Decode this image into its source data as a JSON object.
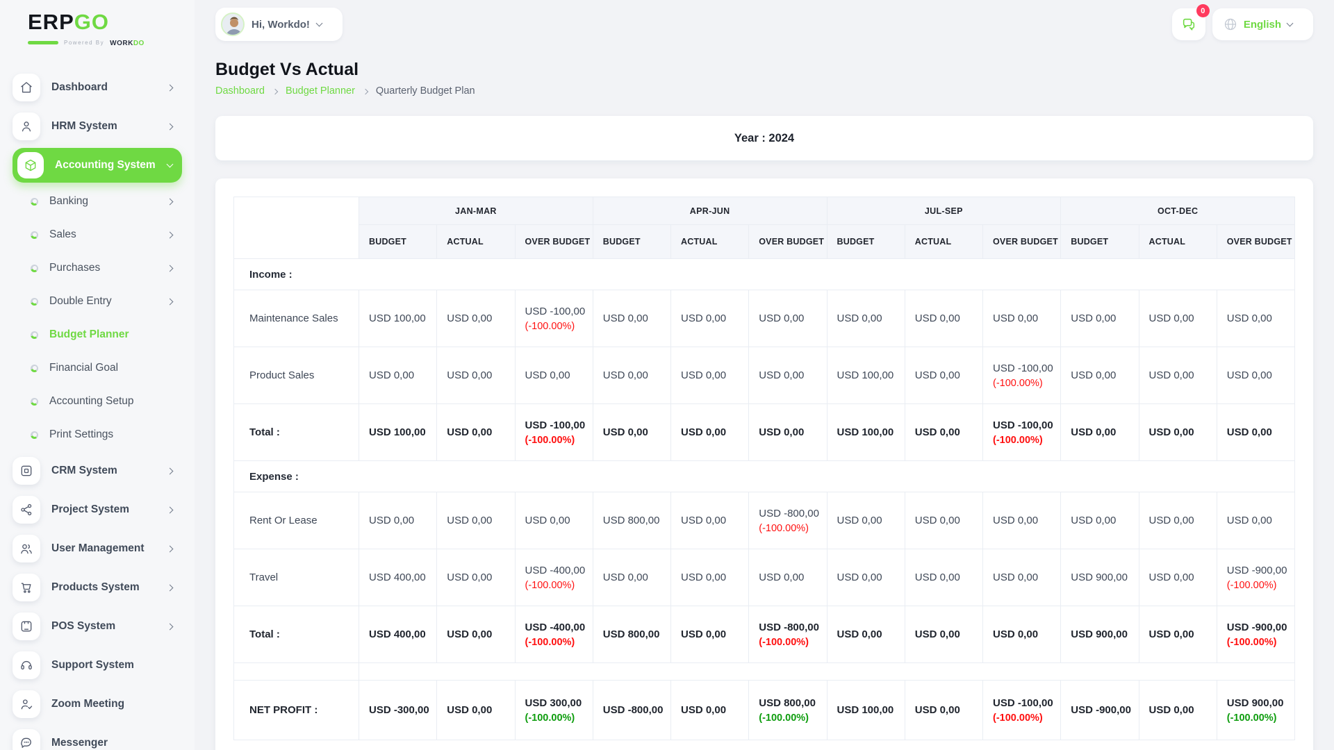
{
  "colors": {
    "accent": "#6fd943",
    "negative": "#ff1010",
    "positive": "#0f9d0f",
    "badge": "#ff3a5e"
  },
  "brand": {
    "name_left": "ERP",
    "name_right": "GO",
    "powered_by": "Powered By",
    "maker_left": "WORK",
    "maker_right": "DO"
  },
  "topbar": {
    "greeting": "Hi, Workdo!",
    "notification_count": "0",
    "language": "English"
  },
  "sidebar": {
    "items": [
      {
        "type": "main",
        "icon": "home",
        "label": "Dashboard",
        "chevron": "right"
      },
      {
        "type": "main",
        "icon": "user",
        "label": "HRM System",
        "chevron": "right"
      },
      {
        "type": "main",
        "icon": "cube",
        "label": "Accounting System",
        "chevron": "down",
        "active": true
      },
      {
        "type": "sub",
        "label": "Banking",
        "chevron": "right"
      },
      {
        "type": "sub",
        "label": "Sales",
        "chevron": "right"
      },
      {
        "type": "sub",
        "label": "Purchases",
        "chevron": "right"
      },
      {
        "type": "sub",
        "label": "Double Entry",
        "chevron": "right"
      },
      {
        "type": "sub",
        "label": "Budget Planner",
        "active": true
      },
      {
        "type": "sub",
        "label": "Financial Goal"
      },
      {
        "type": "sub",
        "label": "Accounting Setup"
      },
      {
        "type": "sub",
        "label": "Print Settings"
      },
      {
        "type": "main",
        "icon": "crm",
        "label": "CRM System",
        "chevron": "right"
      },
      {
        "type": "main",
        "icon": "share",
        "label": "Project System",
        "chevron": "right"
      },
      {
        "type": "main",
        "icon": "users",
        "label": "User Management",
        "chevron": "right"
      },
      {
        "type": "main",
        "icon": "cart",
        "label": "Products System",
        "chevron": "right"
      },
      {
        "type": "main",
        "icon": "pos",
        "label": "POS System",
        "chevron": "right"
      },
      {
        "type": "main",
        "icon": "headset",
        "label": "Support System"
      },
      {
        "type": "main",
        "icon": "user-check",
        "label": "Zoom Meeting"
      },
      {
        "type": "main",
        "icon": "chat",
        "label": "Messenger"
      }
    ]
  },
  "page": {
    "title": "Budget Vs Actual",
    "breadcrumb": [
      "Dashboard",
      "Budget Planner",
      "Quarterly Budget Plan"
    ]
  },
  "year_banner": "Year : 2024",
  "budget_table": {
    "quarters": [
      "JAN-MAR",
      "APR-JUN",
      "JUL-SEP",
      "OCT-DEC"
    ],
    "sub_headers": [
      "BUDGET",
      "ACTUAL",
      "OVER BUDGET"
    ],
    "rows": [
      {
        "type": "section",
        "label": "Income :"
      },
      {
        "type": "data",
        "label": "Maintenance Sales",
        "cells": [
          "USD 100,00",
          "USD 0,00",
          {
            "amount": "USD -100,00",
            "percent": "(-100.00%)",
            "tone": "negative"
          },
          "USD 0,00",
          "USD 0,00",
          "USD 0,00",
          "USD 0,00",
          "USD 0,00",
          "USD 0,00",
          "USD 0,00",
          "USD 0,00",
          "USD 0,00"
        ]
      },
      {
        "type": "data",
        "label": "Product Sales",
        "cells": [
          "USD 0,00",
          "USD 0,00",
          "USD 0,00",
          "USD 0,00",
          "USD 0,00",
          "USD 0,00",
          "USD 100,00",
          "USD 0,00",
          {
            "amount": "USD -100,00",
            "percent": "(-100.00%)",
            "tone": "negative"
          },
          "USD 0,00",
          "USD 0,00",
          "USD 0,00"
        ]
      },
      {
        "type": "total",
        "label": "Total :",
        "cells": [
          "USD 100,00",
          "USD 0,00",
          {
            "amount": "USD -100,00",
            "percent": "(-100.00%)",
            "tone": "negative"
          },
          "USD 0,00",
          "USD 0,00",
          "USD 0,00",
          "USD 100,00",
          "USD 0,00",
          {
            "amount": "USD -100,00",
            "percent": "(-100.00%)",
            "tone": "negative"
          },
          "USD 0,00",
          "USD 0,00",
          "USD 0,00"
        ]
      },
      {
        "type": "section",
        "label": "Expense :"
      },
      {
        "type": "data",
        "label": "Rent Or Lease",
        "cells": [
          "USD 0,00",
          "USD 0,00",
          "USD 0,00",
          "USD 800,00",
          "USD 0,00",
          {
            "amount": "USD -800,00",
            "percent": "(-100.00%)",
            "tone": "negative"
          },
          "USD 0,00",
          "USD 0,00",
          "USD 0,00",
          "USD 0,00",
          "USD 0,00",
          "USD 0,00"
        ]
      },
      {
        "type": "data",
        "label": "Travel",
        "cells": [
          "USD 400,00",
          "USD 0,00",
          {
            "amount": "USD -400,00",
            "percent": "(-100.00%)",
            "tone": "negative"
          },
          "USD 0,00",
          "USD 0,00",
          "USD 0,00",
          "USD 0,00",
          "USD 0,00",
          "USD 0,00",
          "USD 900,00",
          "USD 0,00",
          {
            "amount": "USD -900,00",
            "percent": "(-100.00%)",
            "tone": "negative"
          }
        ]
      },
      {
        "type": "total",
        "label": "Total :",
        "cells": [
          "USD 400,00",
          "USD 0,00",
          {
            "amount": "USD -400,00",
            "percent": "(-100.00%)",
            "tone": "negative"
          },
          "USD 800,00",
          "USD 0,00",
          {
            "amount": "USD -800,00",
            "percent": "(-100.00%)",
            "tone": "negative"
          },
          "USD 0,00",
          "USD 0,00",
          "USD 0,00",
          "USD 900,00",
          "USD 0,00",
          {
            "amount": "USD -900,00",
            "percent": "(-100.00%)",
            "tone": "negative"
          }
        ]
      },
      {
        "type": "spacer"
      },
      {
        "type": "net",
        "label": "NET PROFIT :",
        "cells": [
          "USD -300,00",
          "USD 0,00",
          {
            "amount": "USD 300,00",
            "percent": "(-100.00%)",
            "tone": "positive"
          },
          "USD -800,00",
          "USD 0,00",
          {
            "amount": "USD 800,00",
            "percent": "(-100.00%)",
            "tone": "positive"
          },
          "USD 100,00",
          "USD 0,00",
          {
            "amount": "USD -100,00",
            "percent": "(-100.00%)",
            "tone": "negative"
          },
          "USD -900,00",
          "USD 0,00",
          {
            "amount": "USD 900,00",
            "percent": "(-100.00%)",
            "tone": "positive"
          }
        ]
      }
    ]
  }
}
